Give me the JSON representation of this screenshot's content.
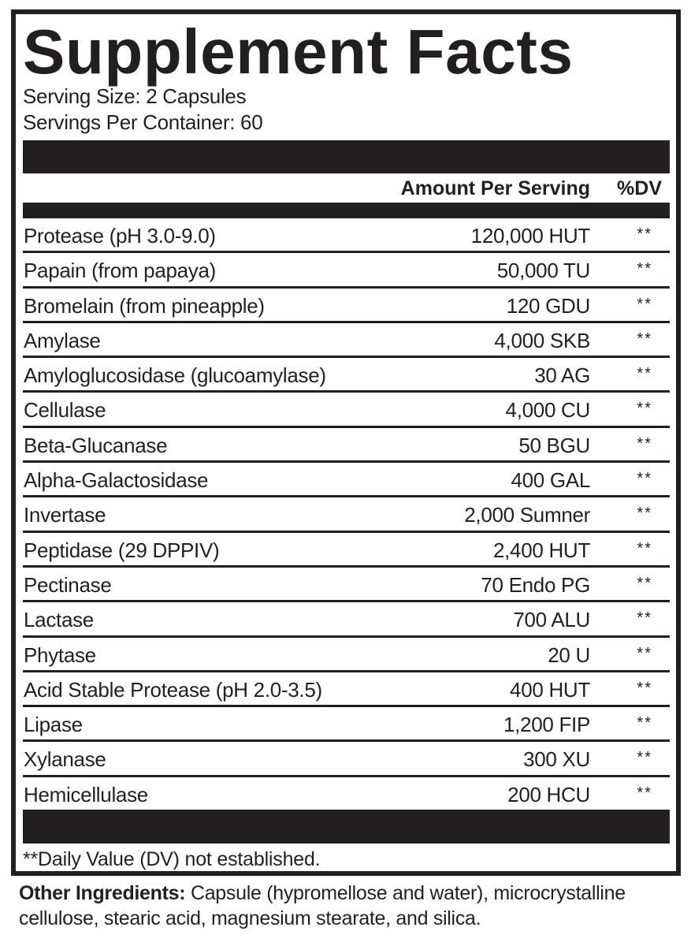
{
  "title": "Supplement Facts",
  "serving_size": "Serving Size: 2 Capsules",
  "servings_per_container": "Servings Per Container: 60",
  "header": {
    "amount": "Amount Per Serving",
    "dv": "%DV"
  },
  "rows": [
    {
      "name": "Protease (pH 3.0-9.0)",
      "amount": "120,000 HUT",
      "dv": "**"
    },
    {
      "name": "Papain (from papaya)",
      "amount": "50,000 TU",
      "dv": "**"
    },
    {
      "name": "Bromelain (from pineapple)",
      "amount": "120 GDU",
      "dv": "**"
    },
    {
      "name": "Amylase",
      "amount": "4,000 SKB",
      "dv": "**"
    },
    {
      "name": "Amyloglucosidase (glucoamylase)",
      "amount": "30 AG",
      "dv": "**"
    },
    {
      "name": "Cellulase",
      "amount": "4,000 CU",
      "dv": "**"
    },
    {
      "name": "Beta-Glucanase",
      "amount": "50 BGU",
      "dv": "**"
    },
    {
      "name": "Alpha-Galactosidase",
      "amount": "400 GAL",
      "dv": "**"
    },
    {
      "name": "Invertase",
      "amount": "2,000 Sumner",
      "dv": "**"
    },
    {
      "name": "Peptidase (29 DPPIV)",
      "amount": "2,400 HUT",
      "dv": "**"
    },
    {
      "name": "Pectinase",
      "amount": "70 Endo PG",
      "dv": "**"
    },
    {
      "name": "Lactase",
      "amount": "700 ALU",
      "dv": "**"
    },
    {
      "name": "Phytase",
      "amount": "20 U",
      "dv": "**"
    },
    {
      "name": "Acid Stable Protease (pH 2.0-3.5)",
      "amount": "400 HUT",
      "dv": "**"
    },
    {
      "name": "Lipase",
      "amount": "1,200 FIP",
      "dv": "**"
    },
    {
      "name": "Xylanase",
      "amount": "300 XU",
      "dv": "**"
    },
    {
      "name": "Hemicellulase",
      "amount": "200 HCU",
      "dv": "**"
    }
  ],
  "footnote": "**Daily Value (DV) not established.",
  "other_ingredients": {
    "label": "Other Ingredients:",
    "text": " Capsule (hypromellose and water), microcrystalline cellulose, stearic acid, magnesium stearate, and silica."
  }
}
